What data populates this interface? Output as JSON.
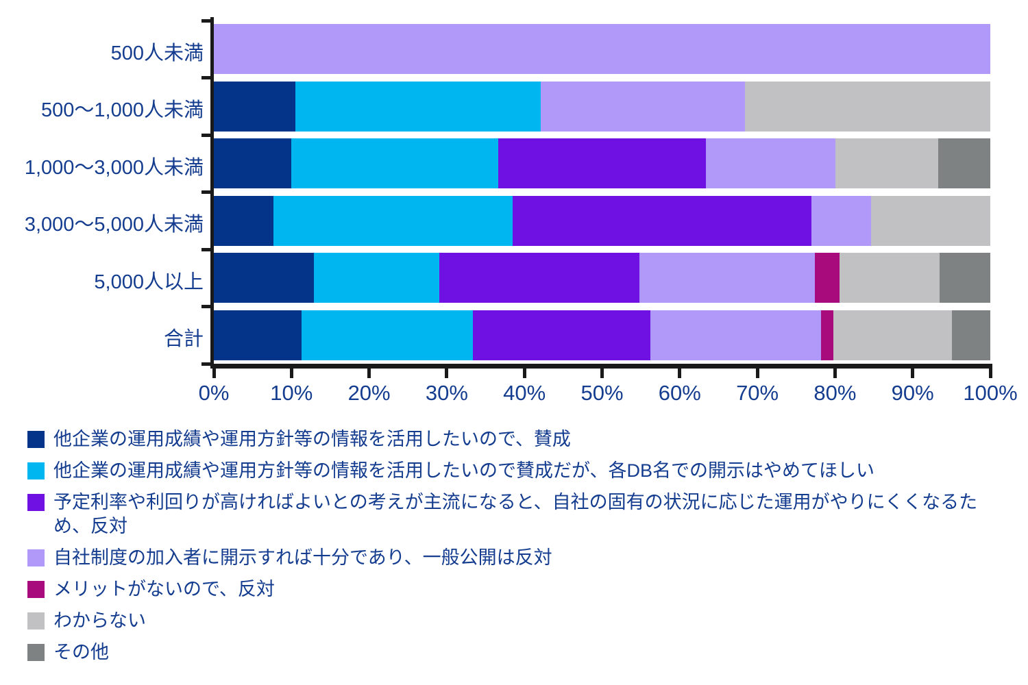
{
  "colors": {
    "text": "#143C8F",
    "axis": "#1a1a1a",
    "background": "#ffffff"
  },
  "chart_data": {
    "type": "bar",
    "orientation": "horizontal",
    "stacked": true,
    "unit": "%",
    "title": "",
    "xlabel": "",
    "ylabel": "",
    "xlim": [
      0,
      100
    ],
    "grid": false,
    "legend_position": "bottom",
    "categories": [
      "500人未満",
      "500〜1,000人未満",
      "1,000〜3,000人未満",
      "3,000〜5,000人未満",
      "5,000人以上",
      "合計"
    ],
    "x_ticks": [
      "0%",
      "10%",
      "20%",
      "30%",
      "40%",
      "50%",
      "60%",
      "70%",
      "80%",
      "90%",
      "100%"
    ],
    "series": [
      {
        "name": "他企業の運用成績や運用方針等の情報を活用したいので、賛成",
        "color": "#04338A",
        "values": [
          0,
          10.5,
          10.0,
          7.7,
          12.9,
          11.3
        ]
      },
      {
        "name": "他企業の運用成績や運用方針等の情報を活用したいので賛成だが、各DB名での開示はやめてほしい",
        "color": "#00B6F0",
        "values": [
          0,
          31.6,
          26.7,
          30.8,
          16.1,
          22.1
        ]
      },
      {
        "name": "予定利率や利回りが高ければよいとの考えが主流になると、自社の固有の状況に応じた運用がやりにくくなるため、反対",
        "color": "#7011E4",
        "values": [
          0,
          0,
          26.7,
          38.5,
          25.8,
          22.8
        ]
      },
      {
        "name": "自社制度の加入者に開示すれば十分であり、一般公開は反対",
        "color": "#B199F9",
        "values": [
          100,
          26.3,
          16.7,
          7.7,
          22.6,
          22.0
        ]
      },
      {
        "name": "メリットがないので、反対",
        "color": "#A80C7C",
        "values": [
          0,
          0,
          0,
          0,
          3.2,
          1.6
        ]
      },
      {
        "name": "わからない",
        "color": "#C1C1C3",
        "values": [
          0,
          31.6,
          13.3,
          15.4,
          12.9,
          15.3
        ]
      },
      {
        "name": "その他",
        "color": "#7F8282",
        "values": [
          0,
          0,
          6.7,
          0,
          6.5,
          4.9
        ]
      }
    ]
  }
}
